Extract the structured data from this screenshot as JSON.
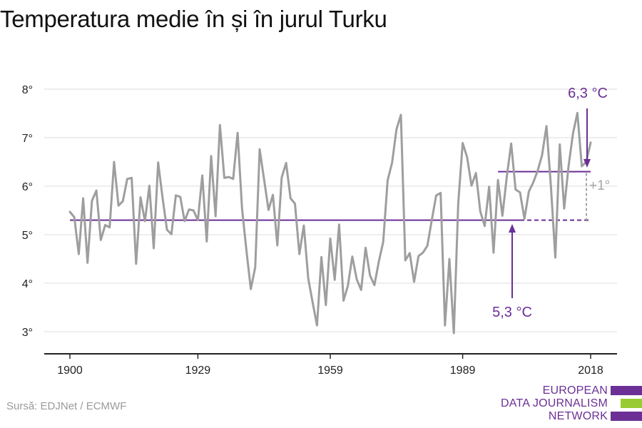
{
  "title": "Temperatura medie în și în jurul Turku",
  "source": "Sursă: EDJNet / ECMWF",
  "logo": {
    "lines": [
      "EUROPEAN",
      "DATA JOURNALISM",
      "NETWORK"
    ],
    "colors": [
      "#6b2f96",
      "#99cc33",
      "#6b2f96"
    ]
  },
  "colors": {
    "series": "#9e9e9e",
    "accent": "#6b2f96",
    "difference": "#a6a6a6",
    "grid": "#dcdcdc",
    "axis": "#222222"
  },
  "chart_data": {
    "type": "line",
    "title": "Temperatura medie în și în jurul Turku",
    "xlabel": "",
    "ylabel": "",
    "x_ticks": [
      1900,
      1929,
      1959,
      1989,
      2018
    ],
    "y_ticks": [
      3,
      4,
      5,
      6,
      7,
      8
    ],
    "y_tick_labels": [
      "3°",
      "4°",
      "5°",
      "6°",
      "7°",
      "8°"
    ],
    "xlim": [
      1895,
      2025
    ],
    "ylim": [
      2.5,
      8.3
    ],
    "grid": "horizontal",
    "series": [
      {
        "x": [
          1900,
          1901,
          1902,
          1903,
          1904,
          1905,
          1906,
          1907,
          1908,
          1909,
          1910,
          1911,
          1912,
          1913,
          1914,
          1915,
          1916,
          1917,
          1918,
          1919,
          1920,
          1921,
          1922,
          1923,
          1924,
          1925,
          1926,
          1927,
          1928,
          1929,
          1930,
          1931,
          1932,
          1933,
          1934,
          1935,
          1936,
          1937,
          1938,
          1939,
          1940,
          1941,
          1942,
          1943,
          1944,
          1945,
          1946,
          1947,
          1948,
          1949,
          1950,
          1951,
          1952,
          1953,
          1954,
          1955,
          1956,
          1957,
          1958,
          1959,
          1960,
          1961,
          1962,
          1963,
          1964,
          1965,
          1966,
          1967,
          1968,
          1969,
          1970,
          1971,
          1972,
          1973,
          1974,
          1975,
          1976,
          1977,
          1978,
          1979,
          1980,
          1981,
          1982,
          1983,
          1984,
          1985,
          1986,
          1987,
          1988,
          1989,
          1990,
          1991,
          1992,
          1993,
          1994,
          1995,
          1996,
          1997,
          1998,
          1999,
          2000,
          2001,
          2002,
          2003,
          2004,
          2005,
          2006,
          2007,
          2008,
          2009,
          2010,
          2011,
          2012,
          2013,
          2014,
          2015,
          2016,
          2017,
          2018
        ],
        "values": [
          5.47,
          5.36,
          4.6,
          5.75,
          4.42,
          5.7,
          5.91,
          4.89,
          5.2,
          5.15,
          6.5,
          5.6,
          5.69,
          6.15,
          6.17,
          4.4,
          5.77,
          5.28,
          6.01,
          4.72,
          6.49,
          5.76,
          5.1,
          5.01,
          5.81,
          5.78,
          5.28,
          5.52,
          5.5,
          5.3,
          6.22,
          4.86,
          6.62,
          5.38,
          7.26,
          6.17,
          6.19,
          6.15,
          7.1,
          5.54,
          4.67,
          3.88,
          4.33,
          6.76,
          6.14,
          5.51,
          5.82,
          4.78,
          6.18,
          6.48,
          5.75,
          5.64,
          4.6,
          5.19,
          4.1,
          3.6,
          3.13,
          4.54,
          3.55,
          4.92,
          4.07,
          5.21,
          3.64,
          3.95,
          4.55,
          4.08,
          3.86,
          4.73,
          4.16,
          3.96,
          4.45,
          4.85,
          6.12,
          6.48,
          7.17,
          7.47,
          4.47,
          4.62,
          4.03,
          4.56,
          4.63,
          4.77,
          5.3,
          5.81,
          5.86,
          3.13,
          4.5,
          2.97,
          5.65,
          6.89,
          6.6,
          6.01,
          6.27,
          5.48,
          5.18,
          5.99,
          4.63,
          6.13,
          5.39,
          6.2,
          6.88,
          5.93,
          5.87,
          5.33,
          5.89,
          6.08,
          6.32,
          6.64,
          7.24,
          6.0,
          4.53,
          6.86,
          5.54,
          6.42,
          7.09,
          7.51,
          6.41,
          6.5,
          6.9
        ]
      }
    ],
    "reference_lines": [
      {
        "label": "5,3 °C",
        "value": 5.3,
        "from": 1900,
        "to": 2018,
        "dashed_from": 2002
      },
      {
        "label": "6,3 °C",
        "value": 6.3,
        "from": 1997,
        "to": 2018
      }
    ],
    "difference_label": "+1°"
  }
}
